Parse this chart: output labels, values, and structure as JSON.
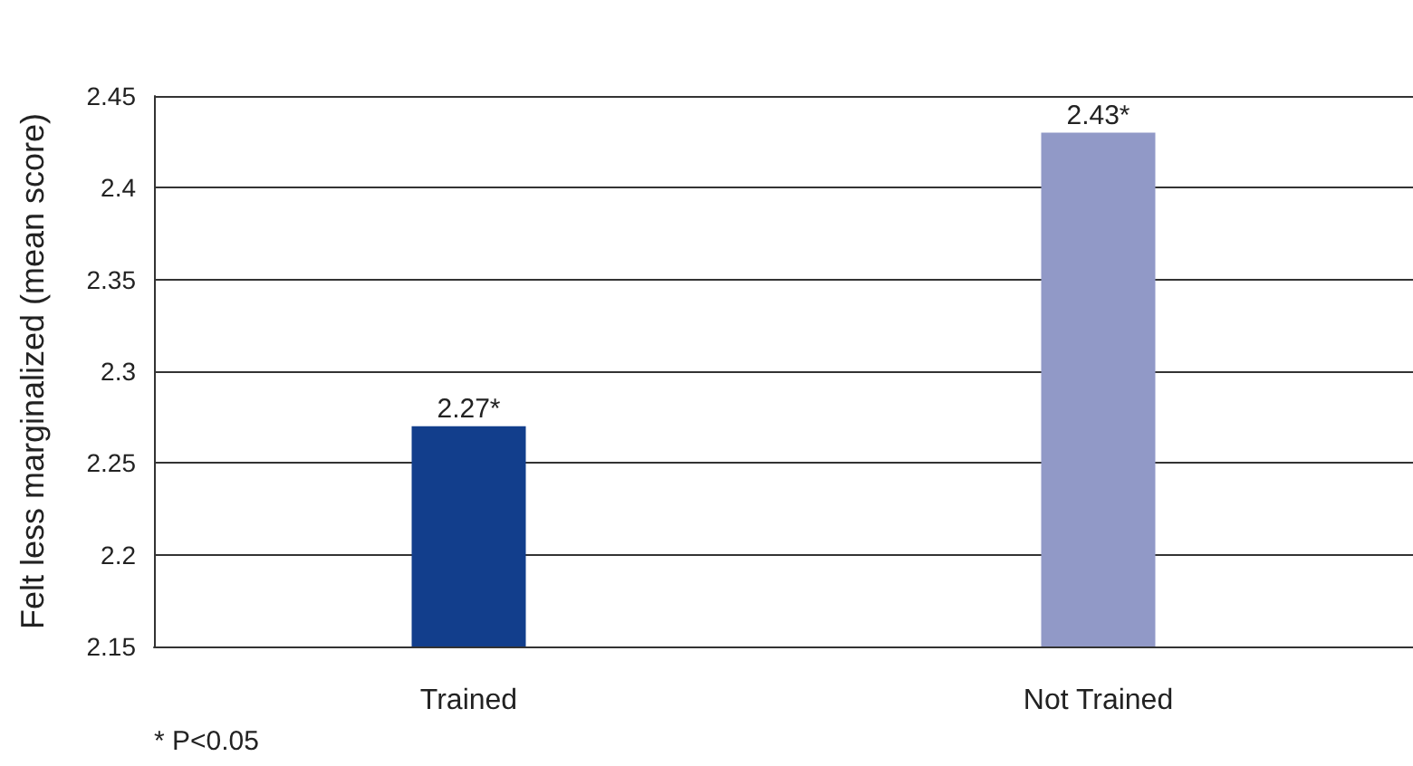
{
  "chart_data": {
    "type": "bar",
    "ylabel": "Felt less marginalized (mean score)",
    "categories": [
      "Trained",
      "Not Trained"
    ],
    "values": [
      2.27,
      2.43
    ],
    "colors": [
      "#123e8c",
      "#9199c7"
    ],
    "value_labels": [
      "2.27*",
      "2.43*"
    ],
    "ylim": [
      2.15,
      2.45
    ],
    "yticks": [
      2.15,
      2.2,
      2.25,
      2.3,
      2.35,
      2.4,
      2.45
    ],
    "grid": "y",
    "annotations": [
      "* P<0.05"
    ]
  }
}
